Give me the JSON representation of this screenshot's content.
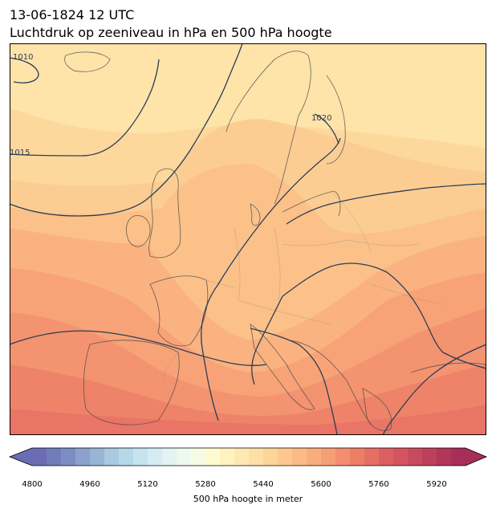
{
  "header": {
    "title_line1": "13-06-1824 12 UTC",
    "title_line2": "Luchtdruk op zeeniveau in hPa en 500 hPa hoogte"
  },
  "map": {
    "region": "Europe",
    "projection": "Lambert",
    "fill_variable": "500 hPa geopotential height (m)",
    "contour_variable": "mean sea level pressure (hPa)",
    "contour_labels": [
      "1010",
      "1015",
      "1020"
    ],
    "contour_color": "#2b3d55",
    "border_color": "#8a8a8a"
  },
  "colorbar": {
    "label": "500 hPa hoogte in meter",
    "min": 4800,
    "max": 6000,
    "step": 40,
    "extend": "both",
    "ticks": [
      "4800",
      "4960",
      "5120",
      "5280",
      "5440",
      "5600",
      "5760",
      "5920"
    ],
    "colormap": "RdYlBu_r",
    "colors": [
      "#6a6db3",
      "#717db9",
      "#7b8ec3",
      "#8aa2cc",
      "#98b5d5",
      "#a8c9e0",
      "#b6d8e8",
      "#c6e3ef",
      "#d6ecf3",
      "#e3f3f4",
      "#eef8ee",
      "#f7fbe3",
      "#fefad1",
      "#fff2bf",
      "#fee9b2",
      "#fee0a6",
      "#fdd59a",
      "#fcc88f",
      "#fbbb85",
      "#f9ad7c",
      "#f69e74",
      "#f28e6d",
      "#ec7e66",
      "#e56f63",
      "#dc6061",
      "#d3545f",
      "#c84a5e",
      "#bd3f5c",
      "#b2365a",
      "#a62e58"
    ]
  }
}
